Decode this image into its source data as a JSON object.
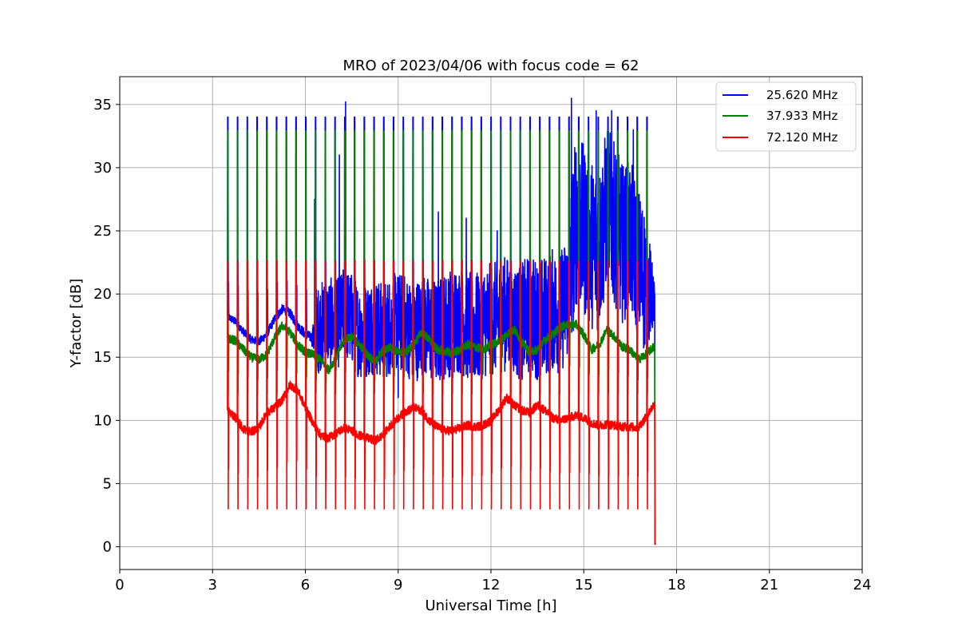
{
  "chart_data": {
    "type": "line",
    "title": "MRO of 2023/04/06 with focus code = 62",
    "xlabel": "Universal Time [h]",
    "ylabel": "Y-factor [dB]",
    "xlim": [
      0,
      24
    ],
    "ylim": [
      -1.8,
      37.2
    ],
    "xticks": [
      0,
      3,
      6,
      9,
      12,
      15,
      18,
      21,
      24
    ],
    "yticks": [
      0,
      5,
      10,
      15,
      20,
      25,
      30,
      35
    ],
    "grid": true,
    "legend_position": "top-right",
    "data_start_hour": 3.5,
    "data_end_hour": 17.3,
    "calibration_spike_count": 44,
    "series": [
      {
        "name": "25.620 MHz",
        "color": "#0000ff",
        "spike_top": 34.0,
        "spike_bottom": 22.7,
        "baseline": [
          [
            3.5,
            18.2
          ],
          [
            3.75,
            17.8
          ],
          [
            4.0,
            17.0
          ],
          [
            4.25,
            16.4
          ],
          [
            4.5,
            16.2
          ],
          [
            4.75,
            16.8
          ],
          [
            5.0,
            18.0
          ],
          [
            5.25,
            18.8
          ],
          [
            5.5,
            18.5
          ],
          [
            5.75,
            17.5
          ],
          [
            6.0,
            16.8
          ],
          [
            6.25,
            16.5
          ],
          [
            6.5,
            17.5
          ],
          [
            6.75,
            17.8
          ],
          [
            7.0,
            17.5
          ],
          [
            7.25,
            18.5
          ],
          [
            7.5,
            18.0
          ],
          [
            7.75,
            17.0
          ],
          [
            8.0,
            17.2
          ],
          [
            8.25,
            17.5
          ],
          [
            8.5,
            17.0
          ],
          [
            8.75,
            17.5
          ],
          [
            9.0,
            17.8
          ],
          [
            9.25,
            17.5
          ],
          [
            9.5,
            17.0
          ],
          [
            9.75,
            17.5
          ],
          [
            10.0,
            17.2
          ],
          [
            10.25,
            17.0
          ],
          [
            10.5,
            17.5
          ],
          [
            10.75,
            17.8
          ],
          [
            11.0,
            18.0
          ],
          [
            11.25,
            17.5
          ],
          [
            11.5,
            17.2
          ],
          [
            11.75,
            17.8
          ],
          [
            12.0,
            18.0
          ],
          [
            12.25,
            18.2
          ],
          [
            12.5,
            18.5
          ],
          [
            12.75,
            18.0
          ],
          [
            13.0,
            17.8
          ],
          [
            13.25,
            18.5
          ],
          [
            13.5,
            18.0
          ],
          [
            13.75,
            18.2
          ],
          [
            14.0,
            18.8
          ],
          [
            14.25,
            18.5
          ],
          [
            14.5,
            20.0
          ],
          [
            14.75,
            26.0
          ],
          [
            15.0,
            25.0
          ],
          [
            15.25,
            24.0
          ],
          [
            15.5,
            23.5
          ],
          [
            15.75,
            27.0
          ],
          [
            16.0,
            25.5
          ],
          [
            16.25,
            24.0
          ],
          [
            16.5,
            24.5
          ],
          [
            16.75,
            22.5
          ],
          [
            17.0,
            21.0
          ],
          [
            17.25,
            19.5
          ]
        ],
        "noise_amplitude": [
          [
            3.5,
            0.3
          ],
          [
            6.2,
            0.4
          ],
          [
            6.4,
            3.5
          ],
          [
            9.0,
            4.0
          ],
          [
            12.0,
            4.5
          ],
          [
            14.5,
            5.0
          ],
          [
            14.6,
            7.0
          ],
          [
            17.0,
            6.0
          ],
          [
            17.3,
            1.5
          ]
        ],
        "peaks": [
          [
            6.3,
            27.5
          ],
          [
            7.1,
            31.0
          ],
          [
            7.3,
            35.2
          ],
          [
            10.3,
            26.5
          ],
          [
            11.2,
            26.0
          ],
          [
            12.2,
            25.0
          ],
          [
            14.6,
            35.5
          ],
          [
            15.4,
            34.5
          ],
          [
            15.9,
            34.5
          ],
          [
            16.6,
            33.0
          ],
          [
            9.0,
            11.8
          ]
        ]
      },
      {
        "name": "37.933 MHz",
        "color": "#008000",
        "spike_top": 32.9,
        "spike_bottom": 12.1,
        "baseline": [
          [
            3.5,
            16.5
          ],
          [
            3.75,
            16.3
          ],
          [
            4.0,
            15.6
          ],
          [
            4.25,
            15.0
          ],
          [
            4.5,
            14.8
          ],
          [
            4.75,
            15.2
          ],
          [
            5.0,
            16.5
          ],
          [
            5.25,
            17.5
          ],
          [
            5.5,
            17.0
          ],
          [
            5.75,
            16.0
          ],
          [
            6.0,
            15.4
          ],
          [
            6.25,
            15.2
          ],
          [
            6.5,
            14.8
          ],
          [
            6.75,
            14.0
          ],
          [
            7.0,
            15.0
          ],
          [
            7.25,
            16.4
          ],
          [
            7.5,
            16.6
          ],
          [
            7.75,
            16.0
          ],
          [
            8.0,
            15.2
          ],
          [
            8.25,
            14.6
          ],
          [
            8.5,
            15.5
          ],
          [
            8.75,
            15.8
          ],
          [
            9.0,
            15.4
          ],
          [
            9.25,
            15.4
          ],
          [
            9.5,
            16.0
          ],
          [
            9.75,
            17.0
          ],
          [
            10.0,
            16.4
          ],
          [
            10.25,
            15.6
          ],
          [
            10.5,
            15.5
          ],
          [
            10.75,
            15.3
          ],
          [
            11.0,
            15.6
          ],
          [
            11.25,
            16.0
          ],
          [
            11.5,
            15.8
          ],
          [
            11.75,
            15.6
          ],
          [
            12.0,
            16.0
          ],
          [
            12.25,
            16.2
          ],
          [
            12.5,
            16.8
          ],
          [
            12.75,
            17.2
          ],
          [
            13.0,
            16.2
          ],
          [
            13.25,
            15.4
          ],
          [
            13.5,
            15.6
          ],
          [
            13.75,
            16.4
          ],
          [
            14.0,
            16.8
          ],
          [
            14.25,
            17.4
          ],
          [
            14.5,
            17.6
          ],
          [
            14.75,
            17.6
          ],
          [
            15.0,
            16.8
          ],
          [
            15.25,
            15.6
          ],
          [
            15.5,
            16.0
          ],
          [
            15.75,
            17.2
          ],
          [
            16.0,
            16.6
          ],
          [
            16.25,
            15.8
          ],
          [
            16.5,
            15.6
          ],
          [
            16.75,
            14.8
          ],
          [
            17.0,
            15.2
          ],
          [
            17.25,
            15.8
          ]
        ],
        "noise_amplitude": [
          [
            3.5,
            0.35
          ],
          [
            17.3,
            0.35
          ]
        ],
        "peaks": []
      },
      {
        "name": "72.120 MHz",
        "color": "#ff0000",
        "spike_top": 22.6,
        "spike_bottom": 3.0,
        "baseline": [
          [
            3.5,
            10.8
          ],
          [
            3.75,
            10.2
          ],
          [
            4.0,
            9.3
          ],
          [
            4.25,
            9.1
          ],
          [
            4.5,
            9.4
          ],
          [
            4.75,
            10.6
          ],
          [
            5.0,
            11.0
          ],
          [
            5.25,
            11.6
          ],
          [
            5.5,
            12.8
          ],
          [
            5.75,
            12.4
          ],
          [
            6.0,
            11.0
          ],
          [
            6.25,
            9.8
          ],
          [
            6.5,
            8.8
          ],
          [
            6.75,
            8.6
          ],
          [
            7.0,
            9.0
          ],
          [
            7.25,
            9.4
          ],
          [
            7.5,
            9.2
          ],
          [
            7.75,
            8.8
          ],
          [
            8.0,
            8.6
          ],
          [
            8.25,
            8.4
          ],
          [
            8.5,
            8.8
          ],
          [
            8.75,
            9.6
          ],
          [
            9.0,
            10.2
          ],
          [
            9.25,
            10.7
          ],
          [
            9.5,
            11.0
          ],
          [
            9.75,
            10.8
          ],
          [
            10.0,
            10.0
          ],
          [
            10.25,
            9.5
          ],
          [
            10.5,
            9.2
          ],
          [
            10.75,
            9.2
          ],
          [
            11.0,
            9.4
          ],
          [
            11.25,
            9.6
          ],
          [
            11.5,
            9.5
          ],
          [
            11.75,
            9.6
          ],
          [
            12.0,
            10.0
          ],
          [
            12.25,
            10.8
          ],
          [
            12.5,
            11.8
          ],
          [
            12.75,
            11.2
          ],
          [
            13.0,
            10.8
          ],
          [
            13.25,
            10.6
          ],
          [
            13.5,
            11.2
          ],
          [
            13.75,
            10.8
          ],
          [
            14.0,
            10.2
          ],
          [
            14.25,
            10.0
          ],
          [
            14.5,
            10.2
          ],
          [
            14.75,
            10.4
          ],
          [
            15.0,
            10.2
          ],
          [
            15.25,
            9.8
          ],
          [
            15.5,
            9.6
          ],
          [
            15.75,
            9.7
          ],
          [
            16.0,
            9.6
          ],
          [
            16.25,
            9.5
          ],
          [
            16.5,
            9.5
          ],
          [
            16.75,
            9.4
          ],
          [
            17.0,
            10.2
          ],
          [
            17.25,
            11.2
          ]
        ],
        "noise_amplitude": [
          [
            3.5,
            0.35
          ],
          [
            17.3,
            0.35
          ]
        ],
        "peaks": []
      }
    ]
  }
}
